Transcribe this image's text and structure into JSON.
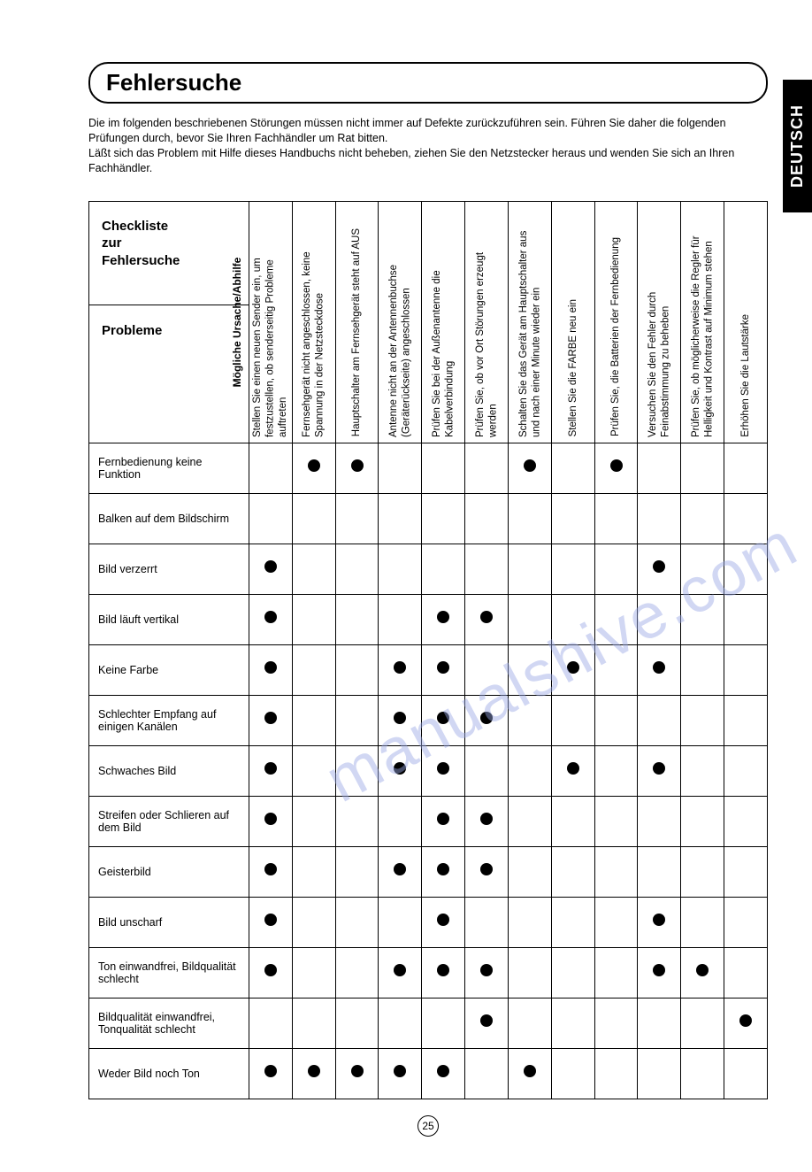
{
  "lang_tab": "DEUTSCH",
  "title": "Fehlersuche",
  "intro_lines": [
    "Die im folgenden beschriebenen Störungen müssen nicht immer auf Defekte zurückzuführen sein. Führen Sie daher die folgenden Prüfungen durch, bevor Sie Ihren Fachhändler um Rat bitten.",
    "Läßt sich das Problem mit Hilfe dieses Handbuchs nicht beheben, ziehen Sie den Netzstecker heraus und wenden Sie sich an Ihren Fachhändler."
  ],
  "corner_top_l1": "Checkliste",
  "corner_top_l2": "zur",
  "corner_top_l3": "Fehlersuche",
  "corner_diag": "Mögliche Ursache/Abhilfe",
  "corner_bottom": "Probleme",
  "columns": [
    "Stellen Sie einen neuen Sender ein, um festzustellen, ob senderseitig Probleme auftreten",
    "Fernsehgerät nicht angeschlossen, keine Spannung in der Netzsteckdose",
    "Hauptschalter am Fernsehgerät steht auf AUS",
    "Antenne nicht an der Antennenbuchse (Geräterückseite) angeschlossen",
    "Prüfen Sie bei der Außenantenne die Kabelverbindung",
    "Prüfen Sie, ob vor Ort Störungen erzeugt werden",
    "Schalten Sie das Gerät am Hauptschalter aus und nach einer Minute wieder ein",
    "Stellen Sie die FARBE neu ein",
    "Prüfen Sie, die Batterien der Fernbedienung",
    "Versuchen Sie den Fehler durch Feinabstimmung zu beheben",
    "Prüfen Sie, ob möglicherweise die Regler für Helligkeit und Kontrast auf Minimum stehen",
    "Erhöhen Sie die Lautstärke"
  ],
  "rows": [
    {
      "label": "Fernbedienung keine Funktion",
      "marks": [
        0,
        1,
        1,
        0,
        0,
        0,
        1,
        0,
        1,
        0,
        0,
        0
      ]
    },
    {
      "label": "Balken auf dem Bildschirm",
      "marks": [
        0,
        0,
        0,
        0,
        0,
        0,
        0,
        0,
        0,
        0,
        0,
        0
      ]
    },
    {
      "label": "Bild verzerrt",
      "marks": [
        1,
        0,
        0,
        0,
        0,
        0,
        0,
        0,
        0,
        1,
        0,
        0
      ]
    },
    {
      "label": "Bild läuft vertikal",
      "marks": [
        1,
        0,
        0,
        0,
        1,
        1,
        0,
        0,
        0,
        0,
        0,
        0
      ]
    },
    {
      "label": "Keine Farbe",
      "marks": [
        1,
        0,
        0,
        1,
        1,
        0,
        0,
        1,
        0,
        1,
        0,
        0
      ]
    },
    {
      "label": "Schlechter Empfang auf einigen Kanälen",
      "marks": [
        1,
        0,
        0,
        1,
        1,
        1,
        0,
        0,
        0,
        0,
        0,
        0
      ]
    },
    {
      "label": "Schwaches Bild",
      "marks": [
        1,
        0,
        0,
        1,
        1,
        0,
        0,
        1,
        0,
        1,
        0,
        0
      ]
    },
    {
      "label": "Streifen oder Schlieren auf dem Bild",
      "marks": [
        1,
        0,
        0,
        0,
        1,
        1,
        0,
        0,
        0,
        0,
        0,
        0
      ]
    },
    {
      "label": "Geisterbild",
      "marks": [
        1,
        0,
        0,
        1,
        1,
        1,
        0,
        0,
        0,
        0,
        0,
        0
      ]
    },
    {
      "label": "Bild unscharf",
      "marks": [
        1,
        0,
        0,
        0,
        1,
        0,
        0,
        0,
        0,
        1,
        0,
        0
      ]
    },
    {
      "label": "Ton einwandfrei, Bildqualität schlecht",
      "marks": [
        1,
        0,
        0,
        1,
        1,
        1,
        0,
        0,
        0,
        1,
        1,
        0
      ]
    },
    {
      "label": "Bildqualität einwandfrei, Tonqualität schlecht",
      "marks": [
        0,
        0,
        0,
        0,
        0,
        1,
        0,
        0,
        0,
        0,
        0,
        1
      ]
    },
    {
      "label": "Weder Bild noch Ton",
      "marks": [
        1,
        1,
        1,
        1,
        1,
        0,
        1,
        0,
        0,
        0,
        0,
        0
      ]
    }
  ],
  "watermark": "manualshive.com",
  "page_number": "25"
}
